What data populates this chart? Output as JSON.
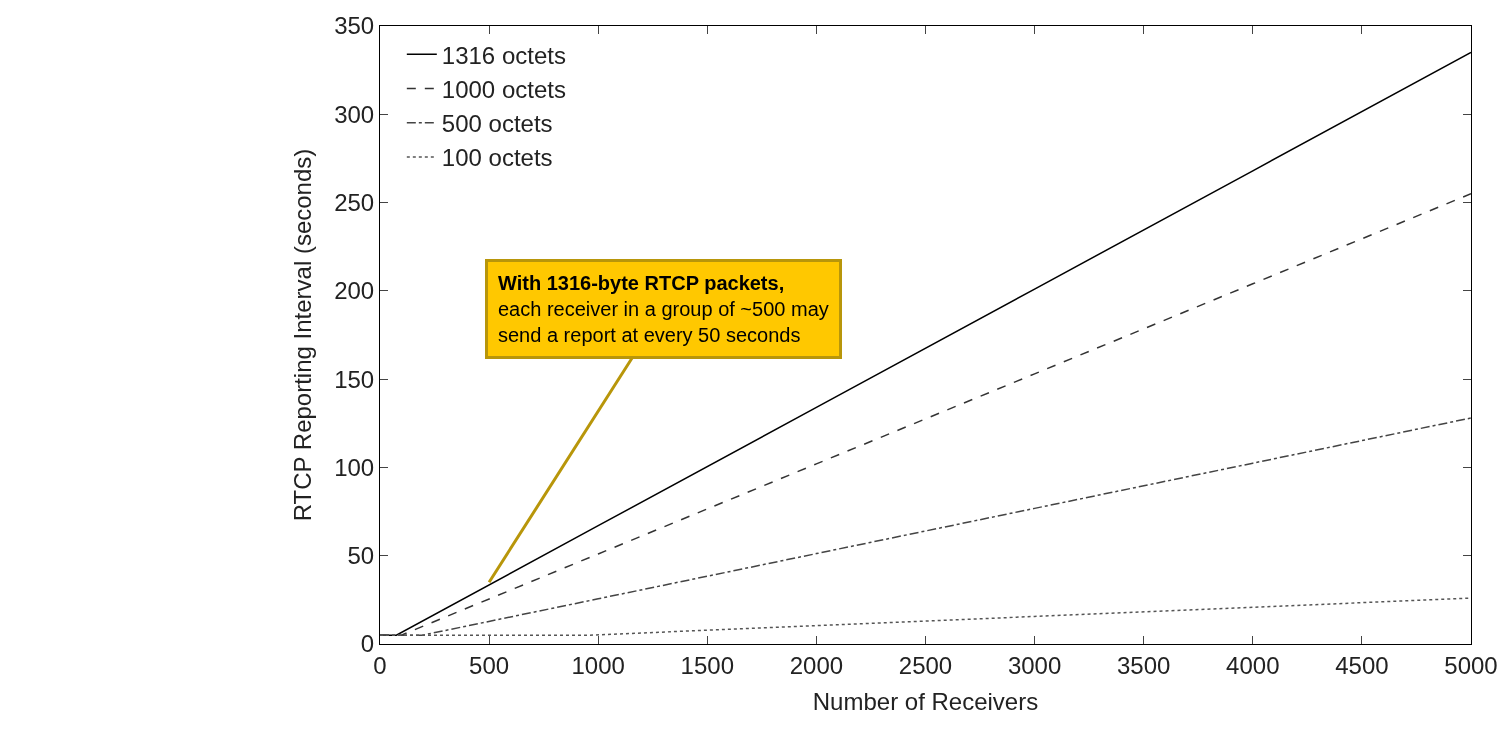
{
  "chart_data": {
    "type": "line",
    "xlabel": "Number of Receivers",
    "ylabel": "RTCP Reporting Interval (seconds)",
    "series": [
      {
        "name": "1316 octets",
        "color": "#000000",
        "line_style": "solid",
        "x": [
          0,
          75,
          1000,
          2000,
          3000,
          4000,
          5000
        ],
        "values": [
          5,
          5,
          67,
          134,
          201,
          268,
          335
        ]
      },
      {
        "name": "1000 octets",
        "color": "#333333",
        "line_style": "dashed",
        "x": [
          0,
          98,
          1000,
          2000,
          3000,
          4000,
          5000
        ],
        "values": [
          5,
          5,
          51,
          102,
          153,
          204,
          255
        ]
      },
      {
        "name": "500 octets",
        "color": "#444444",
        "line_style": "dashdot",
        "x": [
          0,
          195,
          1000,
          2000,
          3000,
          4000,
          5000
        ],
        "values": [
          5,
          5,
          25.6,
          51.2,
          76.8,
          102.4,
          128
        ]
      },
      {
        "name": "100 octets",
        "color": "#555555",
        "line_style": "dotted",
        "x": [
          0,
          960,
          2000,
          3000,
          4000,
          5000
        ],
        "values": [
          5,
          5,
          10.4,
          15.6,
          20.8,
          26
        ]
      }
    ],
    "xlim": [
      0,
      5000
    ],
    "xticks": [
      0,
      500,
      1000,
      1500,
      2000,
      2500,
      3000,
      3500,
      4000,
      4500,
      5000
    ],
    "ylim": [
      0,
      350
    ],
    "yticks": [
      0,
      50,
      100,
      150,
      200,
      250,
      300,
      350
    ],
    "legend": "top left",
    "marker": "none",
    "annotations": [
      {
        "text": "With 1316-byte RTCP packets,\neach receiver in a group of ~500 may\nsend a report at every 50 seconds",
        "x": 500,
        "y": 35
      }
    ]
  }
}
